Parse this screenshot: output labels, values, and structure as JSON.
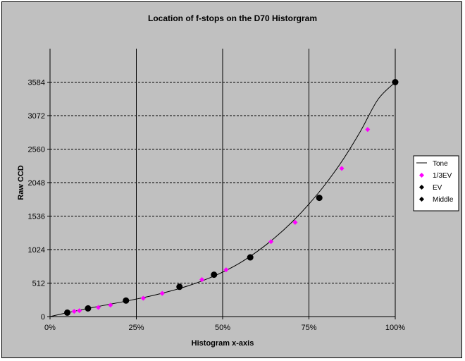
{
  "chart_data": {
    "type": "scatter",
    "title": "Location of f-stops on the D70 Historgram",
    "xlabel": "Histogram x-axis",
    "ylabel": "Raw CCD",
    "xlim": [
      0,
      100
    ],
    "ylim": [
      0,
      4096
    ],
    "x_ticks": [
      0,
      25,
      50,
      75,
      100
    ],
    "x_tick_labels": [
      "0%",
      "25%",
      "50%",
      "75%",
      "100%"
    ],
    "y_ticks": [
      0,
      512,
      1024,
      1536,
      2048,
      2560,
      3072,
      3584
    ],
    "y_tick_labels": [
      "0",
      "512",
      "1024",
      "1536",
      "2048",
      "2560",
      "3072",
      "3584"
    ],
    "grid": {
      "x": "solid vertical lines",
      "y": "dashed horizontal lines"
    },
    "legend_position": "right",
    "series": [
      {
        "name": "Tone",
        "kind": "line",
        "color": "#000000",
        "x": [
          0,
          5,
          10,
          15,
          20,
          25,
          30,
          35,
          40,
          45,
          50,
          55,
          60,
          65,
          70,
          75,
          80,
          85,
          90,
          95,
          100
        ],
        "y": [
          0,
          60,
          115,
          165,
          215,
          268,
          325,
          392,
          470,
          565,
          680,
          820,
          995,
          1200,
          1440,
          1720,
          2040,
          2410,
          2840,
          3320,
          3584
        ]
      },
      {
        "name": "1/3EV",
        "kind": "marker",
        "marker": "diamond",
        "color": "#ff00ff",
        "x": [
          7,
          8.5,
          14,
          17.5,
          27,
          32.5,
          44,
          51,
          64,
          71,
          84.5,
          92
        ],
        "y": [
          80,
          90,
          140,
          175,
          280,
          355,
          565,
          715,
          1145,
          1440,
          2265,
          2860
        ]
      },
      {
        "name": "EV",
        "kind": "marker",
        "marker": "circle",
        "color": "#000000",
        "x": [
          5,
          11,
          22,
          37.5,
          47.5,
          58,
          78,
          100
        ],
        "y": [
          60,
          125,
          245,
          455,
          640,
          905,
          1815,
          3584
        ]
      },
      {
        "name": "Middle",
        "kind": "marker",
        "marker": "diamond",
        "color": "#000000",
        "x": [],
        "y": []
      }
    ]
  }
}
